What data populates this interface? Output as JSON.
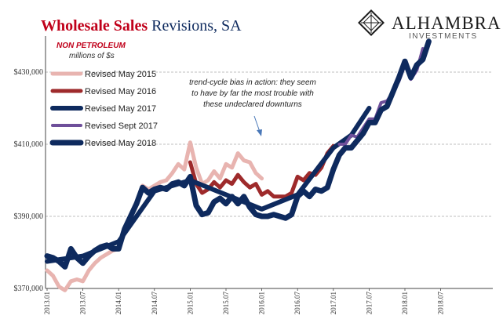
{
  "title": {
    "bold_part": "Wholesale Sales",
    "rest": " Revisions, SA"
  },
  "subtitle": {
    "line1": "NON PETROLEUM",
    "line2": "millions of $s"
  },
  "logo": {
    "name": "ALHAMBRA",
    "tagline": "INVESTMENTS"
  },
  "annotation": {
    "lines": [
      "trend-cycle bias in action: they seem",
      "to have by far the most trouble with",
      "these undeclared downturns"
    ]
  },
  "colors": {
    "rev_may_2015": "#e8b4b0",
    "rev_may_2016": "#9e2a2b",
    "rev_may_2017": "#0e2a5e",
    "rev_sept_2017": "#6e4f9a",
    "rev_may_2018": "#0e2a5e",
    "gridline": "#aaaaaa"
  },
  "chart_data": {
    "type": "line",
    "x_labels": [
      "2013.01",
      "2013.07",
      "2014.01",
      "2014.07",
      "2015.01",
      "2015.07",
      "2016.01",
      "2016.07",
      "2017.01",
      "2017.07",
      "2018.01",
      "2018.07"
    ],
    "ylim": [
      370000,
      440000
    ],
    "yticks": [
      370000,
      390000,
      410000,
      430000
    ],
    "ytick_labels": [
      "$370,000",
      "$390,000",
      "$410,000",
      "$430,000"
    ],
    "grid": true,
    "legend_position": "top-left",
    "series": [
      {
        "name": "Revised May 2015",
        "key": "rev_may_2015",
        "x": [
          "2013.01",
          "2013.02",
          "2013.03",
          "2013.04",
          "2013.05",
          "2013.06",
          "2013.07",
          "2013.08",
          "2013.09",
          "2013.10",
          "2013.11",
          "2013.12",
          "2014.01",
          "2014.02",
          "2014.03",
          "2014.04",
          "2014.05",
          "2014.06",
          "2014.07",
          "2014.08",
          "2014.09",
          "2014.10",
          "2014.11",
          "2014.12",
          "2015.01",
          "2015.02",
          "2015.03",
          "2015.04",
          "2015.05",
          "2015.06",
          "2015.07",
          "2015.08",
          "2015.09",
          "2015.10",
          "2015.11",
          "2015.12",
          "2016.01"
        ],
        "values": [
          375000,
          373500,
          370500,
          369500,
          372000,
          372500,
          372000,
          375000,
          377000,
          378500,
          379500,
          380500,
          381000,
          385500,
          390000,
          393500,
          398500,
          397500,
          398500,
          399500,
          400000,
          402000,
          404500,
          403000,
          410500,
          403500,
          399000,
          400000,
          402500,
          400500,
          404500,
          403500,
          407500,
          405500,
          405000,
          402000,
          400500
        ]
      },
      {
        "name": "Revised May 2016",
        "key": "rev_may_2016",
        "x": [
          "2015.01",
          "2015.02",
          "2015.03",
          "2015.04",
          "2015.05",
          "2015.06",
          "2015.07",
          "2015.08",
          "2015.09",
          "2015.10",
          "2015.11",
          "2015.12",
          "2016.01",
          "2016.02",
          "2016.03",
          "2016.04",
          "2016.05",
          "2016.06",
          "2016.07",
          "2016.08",
          "2016.09",
          "2016.10",
          "2016.11",
          "2016.12",
          "2017.01"
        ],
        "values": [
          405000,
          399000,
          396500,
          397500,
          399500,
          398000,
          400000,
          399000,
          401500,
          399500,
          398000,
          399000,
          396000,
          397000,
          395500,
          395500,
          395500,
          396500,
          401000,
          400000,
          402000,
          401500,
          403500,
          407500,
          409500
        ]
      },
      {
        "name": "Revised May 2017",
        "key": "rev_may_2017",
        "x": [
          "2013.01",
          "2013.07",
          "2014.01",
          "2014.07",
          "2015.01",
          "2015.07",
          "2016.01",
          "2016.07",
          "2017.01",
          "2017.04",
          "2017.07"
        ],
        "values": [
          377500,
          379000,
          383000,
          397000,
          400000,
          396000,
          392000,
          396000,
          409000,
          412500,
          420000
        ]
      },
      {
        "name": "Revised Sept 2017",
        "key": "rev_sept_2017",
        "x": [
          "2017.02",
          "2017.03",
          "2017.04",
          "2017.05",
          "2017.06",
          "2017.07",
          "2017.08",
          "2017.09",
          "2017.10",
          "2017.11",
          "2017.12",
          "2018.01",
          "2018.02",
          "2018.03",
          "2018.04"
        ],
        "values": [
          410000,
          410000,
          412500,
          412000,
          414500,
          417000,
          417000,
          421500,
          422000,
          424500,
          427500,
          432000,
          428000,
          430500,
          436500
        ]
      },
      {
        "name": "Revised May 2018",
        "key": "rev_may_2018",
        "x": [
          "2013.01",
          "2013.02",
          "2013.03",
          "2013.04",
          "2013.05",
          "2013.06",
          "2013.07",
          "2013.08",
          "2013.09",
          "2013.10",
          "2013.11",
          "2013.12",
          "2014.01",
          "2014.02",
          "2014.03",
          "2014.04",
          "2014.05",
          "2014.06",
          "2014.07",
          "2014.08",
          "2014.09",
          "2014.10",
          "2014.11",
          "2014.12",
          "2015.01",
          "2015.02",
          "2015.03",
          "2015.04",
          "2015.05",
          "2015.06",
          "2015.07",
          "2015.08",
          "2015.09",
          "2015.10",
          "2015.11",
          "2015.12",
          "2016.01",
          "2016.02",
          "2016.03",
          "2016.04",
          "2016.05",
          "2016.06",
          "2016.07",
          "2016.08",
          "2016.09",
          "2016.10",
          "2016.11",
          "2016.12",
          "2017.01",
          "2017.02",
          "2017.03",
          "2017.04",
          "2017.05",
          "2017.06",
          "2017.07",
          "2017.08",
          "2017.09",
          "2017.10",
          "2017.11",
          "2017.12",
          "2018.01",
          "2018.02",
          "2018.03",
          "2018.04",
          "2018.05"
        ],
        "values": [
          379000,
          378500,
          377500,
          376000,
          381000,
          378500,
          377000,
          379000,
          380500,
          381500,
          382000,
          381000,
          381000,
          386500,
          390000,
          393500,
          398000,
          396500,
          397500,
          398000,
          397500,
          399000,
          399500,
          398500,
          401000,
          393000,
          390500,
          391000,
          394000,
          395000,
          393500,
          395500,
          393500,
          395500,
          392500,
          390500,
          390000,
          390000,
          390500,
          390000,
          389500,
          390500,
          395500,
          397000,
          395500,
          397500,
          397000,
          398000,
          403000,
          407000,
          409000,
          409000,
          411000,
          413000,
          416000,
          416000,
          419500,
          420500,
          424500,
          428500,
          433000,
          428500,
          432000,
          433500,
          438500
        ]
      }
    ]
  }
}
